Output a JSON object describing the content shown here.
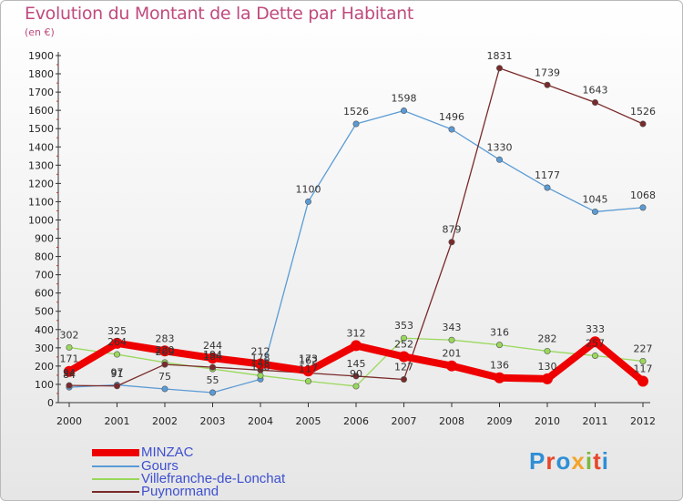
{
  "title": "Evolution du Montant de la Dette par Habitant",
  "subtitle": "(en €)",
  "logo": {
    "text": "Proxiti",
    "colors": [
      "#2f8fd5",
      "#e8462b",
      "#2f8fd5",
      "#f3a42c",
      "#7bb93d",
      "#e8462b",
      "#2f8fd5"
    ]
  },
  "chart_data": {
    "type": "line",
    "categories": [
      "2000",
      "2001",
      "2002",
      "2003",
      "2004",
      "2005",
      "2006",
      "2007",
      "2008",
      "2009",
      "2010",
      "2011",
      "2012"
    ],
    "y_ticks": [
      "0",
      "100",
      "200",
      "300",
      "400",
      "500",
      "600",
      "700",
      "800",
      "900",
      "1000",
      "1100",
      "1200",
      "1300",
      "1400",
      "1500",
      "1600",
      "1700",
      "1800",
      "1900"
    ],
    "ylim": [
      0,
      1900
    ],
    "grid": false,
    "legend_position": "bottom-left",
    "series": [
      {
        "name": "MINZAC",
        "color": "#ee0000",
        "values": [
          171,
          325,
          283,
          244,
          212,
          173,
          312,
          252,
          201,
          136,
          130,
          333,
          117
        ],
        "labels": [
          "171",
          "325",
          "283",
          "244",
          "212",
          "173",
          "312",
          "252",
          "201",
          "136",
          "130",
          "333",
          "117"
        ]
      },
      {
        "name": "Gours",
        "color": "#5b9bd5",
        "values": [
          84,
          97,
          75,
          55,
          128,
          1100,
          1526,
          1598,
          1496,
          1330,
          1177,
          1045,
          1068
        ],
        "labels": [
          "84",
          "97",
          "75",
          "55",
          "128",
          "1100",
          "1526",
          "1598",
          "1496",
          "1330",
          "1177",
          "1045",
          "1068"
        ]
      },
      {
        "name": "Villefranche-de-Lonchat",
        "color": "#99d85b",
        "values": [
          302,
          264,
          220,
          184,
          148,
          117,
          90,
          353,
          343,
          316,
          282,
          257,
          227
        ],
        "labels": [
          "302",
          "264",
          "220",
          "184",
          "148",
          "117",
          "90",
          "353",
          "343",
          "316",
          "282",
          "257",
          "227"
        ]
      },
      {
        "name": "Puynormand",
        "color": "#7a2a2a",
        "values": [
          94,
          91,
          209,
          194,
          178,
          162,
          145,
          127,
          879,
          1831,
          1739,
          1643,
          1526
        ],
        "labels": [
          "94",
          "91",
          "209",
          "194",
          "178",
          "162",
          "145",
          "127",
          "879",
          "1831",
          "1739",
          "1643",
          "1526"
        ]
      }
    ]
  }
}
